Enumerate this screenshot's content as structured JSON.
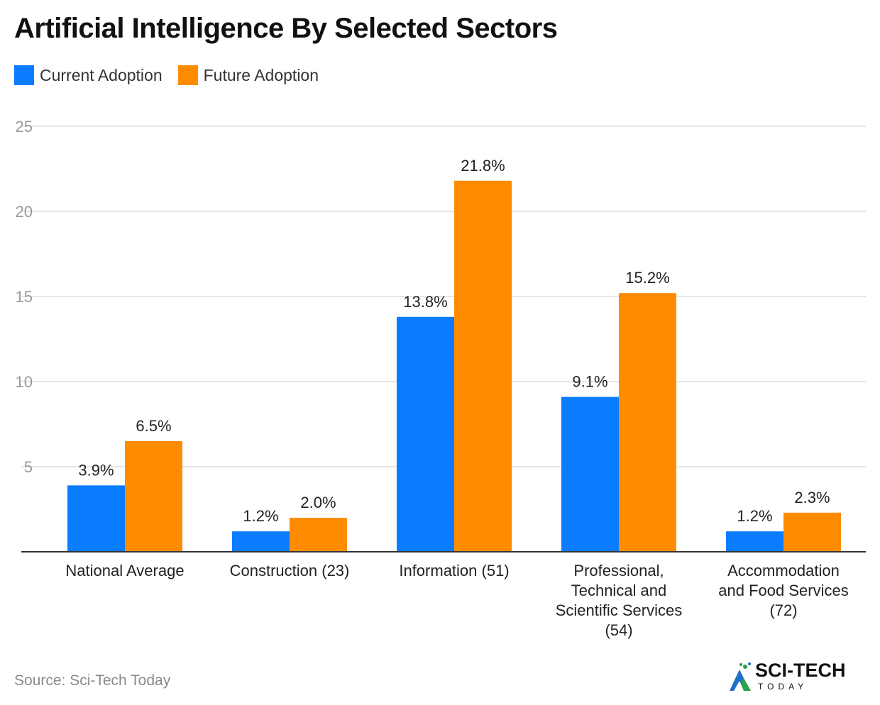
{
  "title": "Artificial Intelligence By Selected Sectors",
  "legend": [
    {
      "label": "Current Adoption",
      "color": "#0a7cff"
    },
    {
      "label": "Future Adoption",
      "color": "#ff8c00"
    }
  ],
  "source": "Source: Sci-Tech Today",
  "logo": {
    "name": "SCI-TECH",
    "subtitle": "TODAY",
    "icon": "sci-tech-logo-icon"
  },
  "chart_data": {
    "type": "bar",
    "categories": [
      [
        "National Average"
      ],
      [
        "Construction (23)"
      ],
      [
        "Information (51)"
      ],
      [
        "Professional,",
        "Technical and",
        "Scientific Services",
        "(54)"
      ],
      [
        "Accommodation",
        "and Food Services",
        "(72)"
      ]
    ],
    "series": [
      {
        "name": "Current Adoption",
        "color": "#0a7cff",
        "values": [
          3.9,
          1.2,
          13.8,
          9.1,
          1.2
        ],
        "labels": [
          "3.9%",
          "1.2%",
          "13.8%",
          "9.1%",
          "1.2%"
        ]
      },
      {
        "name": "Future Adoption",
        "color": "#ff8c00",
        "values": [
          6.5,
          2.0,
          21.8,
          15.2,
          2.3
        ],
        "labels": [
          "6.5%",
          "2.0%",
          "21.8%",
          "15.2%",
          "2.3%"
        ]
      }
    ],
    "yticks": [
      5,
      10,
      15,
      20,
      25
    ],
    "ylim": [
      0,
      25
    ],
    "grid": true,
    "legend_position": "top-left"
  }
}
